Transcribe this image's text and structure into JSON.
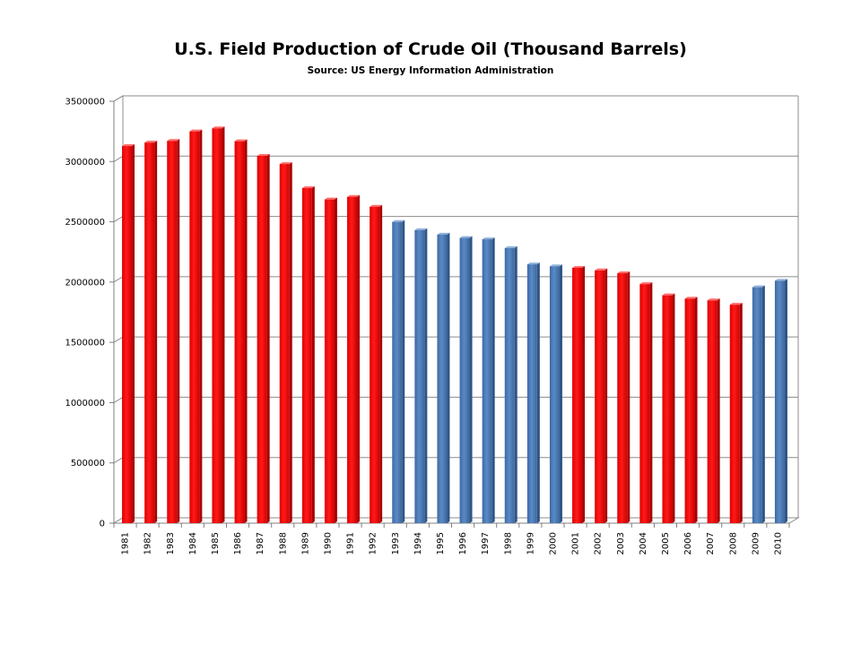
{
  "chart_data": {
    "type": "bar",
    "title": "U.S. Field Production of Crude Oil (Thousand Barrels)",
    "subtitle": "Source: US Energy Information Administration",
    "xlabel": "",
    "ylabel": "",
    "ylim": [
      0,
      3500000
    ],
    "yticks": [
      0,
      500000,
      1000000,
      1500000,
      2000000,
      2500000,
      3000000,
      3500000
    ],
    "grid": true,
    "legend": "none",
    "categories": [
      "1981",
      "1982",
      "1983",
      "1984",
      "1985",
      "1986",
      "1987",
      "1988",
      "1989",
      "1990",
      "1991",
      "1992",
      "1993",
      "1994",
      "1995",
      "1996",
      "1997",
      "1998",
      "1999",
      "2000",
      "2001",
      "2002",
      "2003",
      "2004",
      "2005",
      "2006",
      "2007",
      "2008",
      "2009",
      "2010"
    ],
    "values": [
      3128000,
      3157000,
      3171000,
      3250000,
      3275000,
      3168000,
      3047000,
      2979000,
      2779000,
      2685000,
      2707000,
      2625000,
      2499000,
      2431000,
      2394000,
      2366000,
      2355000,
      2282000,
      2147000,
      2131000,
      2118000,
      2097000,
      2073000,
      1983000,
      1890000,
      1862000,
      1848000,
      1812000,
      1957000,
      2011000
    ],
    "bar_colors": [
      "#ff0000",
      "#ff0000",
      "#ff0000",
      "#ff0000",
      "#ff0000",
      "#ff0000",
      "#ff0000",
      "#ff0000",
      "#ff0000",
      "#ff0000",
      "#ff0000",
      "#ff0000",
      "#4f81bd",
      "#4f81bd",
      "#4f81bd",
      "#4f81bd",
      "#4f81bd",
      "#4f81bd",
      "#4f81bd",
      "#4f81bd",
      "#ff0000",
      "#ff0000",
      "#ff0000",
      "#ff0000",
      "#ff0000",
      "#ff0000",
      "#ff0000",
      "#ff0000",
      "#4f81bd",
      "#4f81bd"
    ],
    "colors": {
      "red": "#ff0000",
      "blue": "#4f81bd"
    }
  }
}
